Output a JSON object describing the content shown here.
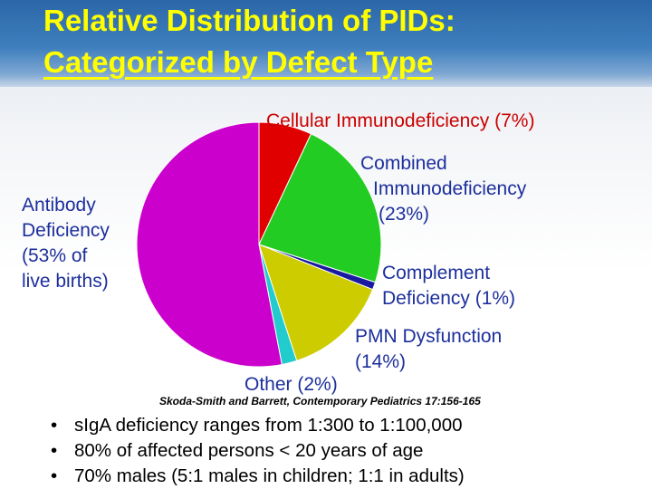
{
  "title": {
    "line1": "Relative Distribution of PIDs:",
    "line2": "Categorized by Defect Type"
  },
  "chart_data": {
    "type": "pie",
    "start_angle_deg": 0,
    "direction": "clockwise",
    "slices": [
      {
        "name": "Cellular Immunodeficiency",
        "value": 7,
        "color": "#e00000"
      },
      {
        "name": "Combined Immunodeficiency",
        "value": 23,
        "color": "#22cc22"
      },
      {
        "name": "Complement Deficiency",
        "value": 1,
        "color": "#1a1aa0"
      },
      {
        "name": "PMN Dysfunction",
        "value": 14,
        "color": "#cccc00"
      },
      {
        "name": "Other",
        "value": 2,
        "color": "#22cccc"
      },
      {
        "name": "Antibody Deficiency",
        "value": 53,
        "color": "#cc00cc"
      }
    ]
  },
  "labels": {
    "cellular": "Cellular Immunodeficiency (7%)",
    "combined_1": "Combined",
    "combined_2": "Immunodeficiency",
    "combined_3": "(23%)",
    "complement_1": "Complement",
    "complement_2": "Deficiency (1%)",
    "pmn_1": "PMN Dysfunction",
    "pmn_2": "(14%)",
    "other": "Other (2%)",
    "antibody_1": "Antibody",
    "antibody_2": "Deficiency",
    "antibody_3": "(53% of",
    "antibody_4": "live births)"
  },
  "citation": "Skoda-Smith and Barrett, Contemporary Pediatrics 17:156-165",
  "bullets": [
    "sIgA deficiency ranges from 1:300 to 1:100,000",
    "80% of affected persons < 20 years of age",
    "70% males (5:1 males in children; 1:1 in adults)"
  ],
  "bullet_glyph": "•"
}
